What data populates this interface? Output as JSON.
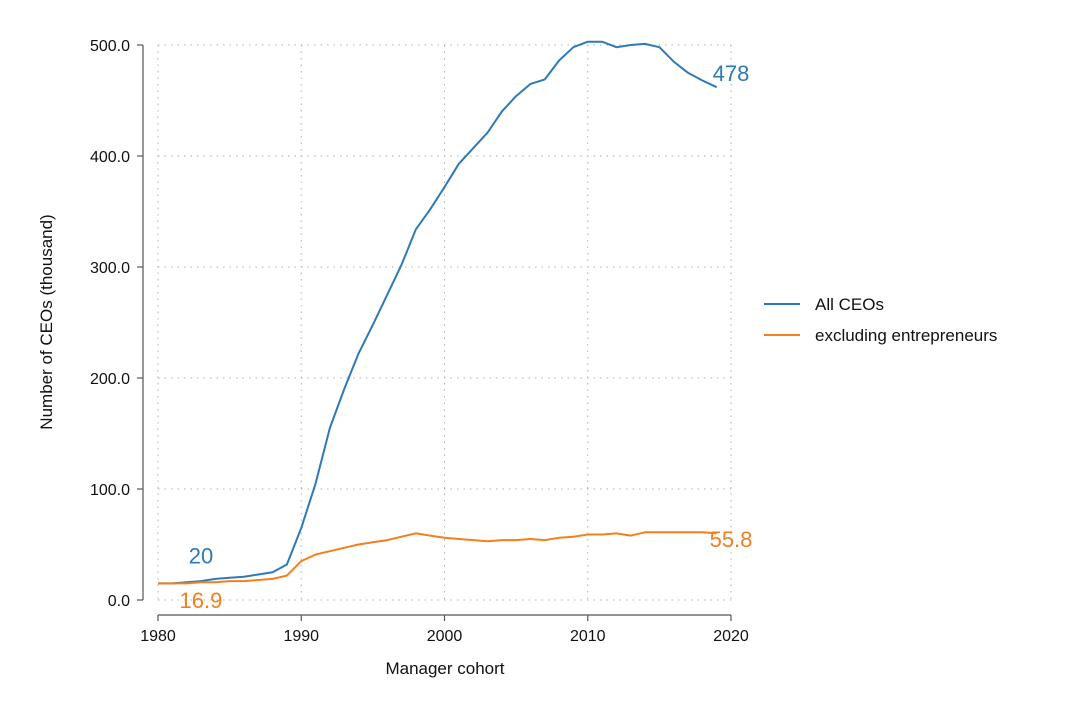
{
  "chart_data": {
    "type": "line",
    "xlabel": "Manager cohort",
    "ylabel": "Number of CEOs (thousand)",
    "xlim": [
      1980,
      2020
    ],
    "ylim": [
      0,
      500
    ],
    "xticks": [
      1980,
      1990,
      2000,
      2010,
      2020
    ],
    "xtick_labels": [
      "1980",
      "1990",
      "2000",
      "2010",
      "2020"
    ],
    "yticks": [
      0,
      100,
      200,
      300,
      400,
      500
    ],
    "ytick_labels": [
      "0.0",
      "100.0",
      "200.0",
      "300.0",
      "400.0",
      "500.0"
    ],
    "grid": true,
    "legend_position": "right",
    "x": [
      1980,
      1981,
      1982,
      1983,
      1984,
      1985,
      1986,
      1987,
      1988,
      1989,
      1990,
      1991,
      1992,
      1993,
      1994,
      1995,
      1996,
      1997,
      1998,
      1999,
      2000,
      2001,
      2002,
      2003,
      2004,
      2005,
      2006,
      2007,
      2008,
      2009,
      2010,
      2011,
      2012,
      2013,
      2014,
      2015,
      2016,
      2017,
      2018,
      2019
    ],
    "series": [
      {
        "name": "All CEOs",
        "color": "#2e7ab6",
        "values": [
          15,
          15,
          16,
          17,
          19,
          20,
          21,
          23,
          25,
          32,
          65,
          105,
          155,
          190,
          222,
          248,
          275,
          302,
          334,
          352,
          372,
          393,
          407,
          421,
          440,
          454,
          465,
          469,
          486,
          498,
          503,
          503,
          498,
          500,
          501,
          498,
          485,
          475,
          468,
          462
        ]
      },
      {
        "name": "excluding entrepreneurs",
        "color": "#f47f1c",
        "values": [
          15,
          15,
          15,
          16,
          16,
          17,
          17,
          18,
          19,
          22,
          35,
          41,
          44,
          47,
          50,
          52,
          54,
          57,
          60,
          58,
          56,
          55,
          54,
          53,
          54,
          54,
          55,
          54,
          56,
          57,
          59,
          59,
          60,
          58,
          61,
          61,
          61,
          61,
          61,
          60
        ]
      }
    ],
    "annotations": [
      {
        "text": "20",
        "x": 1983,
        "y": 40,
        "series": 0
      },
      {
        "text": "478",
        "x": 2020,
        "y": 475,
        "series": 0
      },
      {
        "text": "16.9",
        "x": 1983,
        "y": 0,
        "series": 1
      },
      {
        "text": "55.8",
        "x": 2020,
        "y": 55,
        "series": 1
      }
    ]
  }
}
